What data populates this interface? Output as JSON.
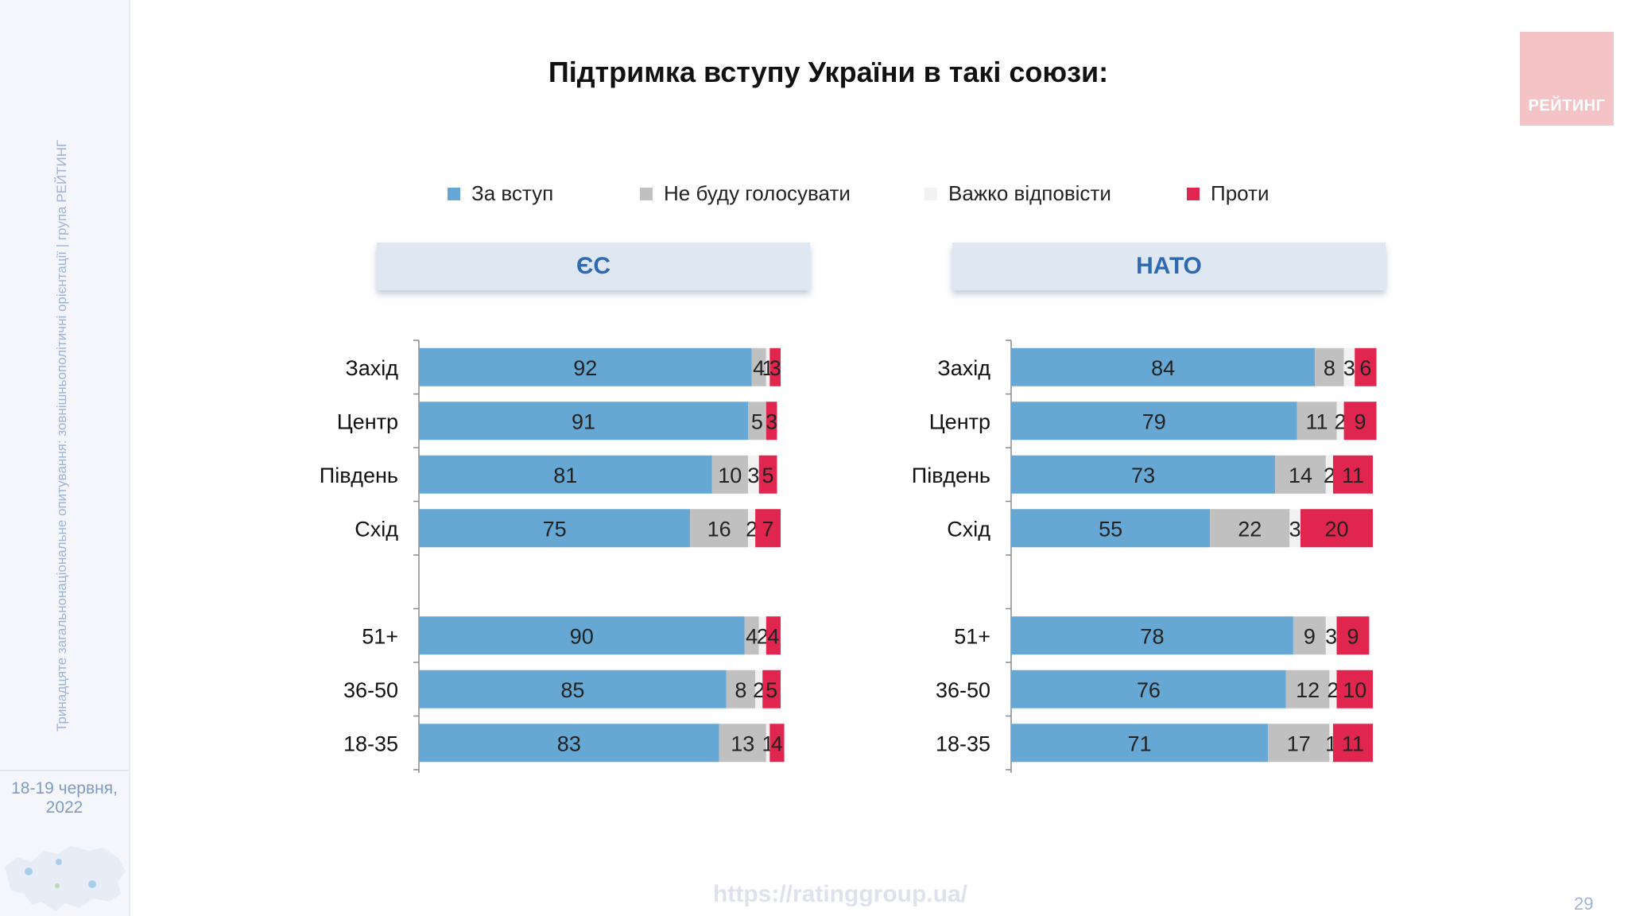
{
  "sidebar": {
    "vertical_text": "Тринадцяте загальнонаціональне опитування: зовнішньополітичні орієнтації | група РЕЙТИНГ",
    "date_line1": "18-19 червня,",
    "date_line2": "2022"
  },
  "title": "Підтримка вступу України в такі союзи:",
  "logo_text": "РЕЙТИНГ",
  "legend": [
    {
      "label": "За вступ",
      "color": "#66a8d3"
    },
    {
      "label": "Не буду голосувати",
      "color": "#c0c0c0"
    },
    {
      "label": "Важко відповісти",
      "color": "#f2f2f2"
    },
    {
      "label": "Проти",
      "color": "#e0264e"
    }
  ],
  "footer": {
    "url": "https://ratinggroup.ua/",
    "page_number": "29"
  },
  "chart_data": [
    {
      "type": "bar",
      "orientation": "horizontal",
      "stacked": true,
      "title": "ЄС",
      "categories": [
        "Захід",
        "Центр",
        "Південь",
        "Схід",
        "",
        "51+",
        "36-50",
        "18-35"
      ],
      "series": [
        {
          "name": "За вступ",
          "color": "#66a8d3",
          "values": [
            92,
            91,
            81,
            75,
            null,
            90,
            85,
            83
          ]
        },
        {
          "name": "Не буду голосувати",
          "color": "#c0c0c0",
          "values": [
            4,
            5,
            10,
            16,
            null,
            4,
            8,
            13
          ]
        },
        {
          "name": "Важко відповісти",
          "color": "#f2f2f2",
          "values": [
            1,
            0,
            3,
            2,
            null,
            2,
            2,
            1
          ]
        },
        {
          "name": "Проти",
          "color": "#e0264e",
          "values": [
            3,
            3,
            5,
            7,
            null,
            4,
            5,
            4
          ]
        }
      ],
      "xlim": [
        0,
        100
      ]
    },
    {
      "type": "bar",
      "orientation": "horizontal",
      "stacked": true,
      "title": "НАТО",
      "categories": [
        "Захід",
        "Центр",
        "Південь",
        "Схід",
        "",
        "51+",
        "36-50",
        "18-35"
      ],
      "series": [
        {
          "name": "За вступ",
          "color": "#66a8d3",
          "values": [
            84,
            79,
            73,
            55,
            null,
            78,
            76,
            71
          ]
        },
        {
          "name": "Не буду голосувати",
          "color": "#c0c0c0",
          "values": [
            8,
            11,
            14,
            22,
            null,
            9,
            12,
            17
          ]
        },
        {
          "name": "Важко відповісти",
          "color": "#f2f2f2",
          "values": [
            3,
            2,
            2,
            3,
            null,
            3,
            2,
            1
          ]
        },
        {
          "name": "Проти",
          "color": "#e0264e",
          "values": [
            6,
            9,
            11,
            20,
            null,
            9,
            10,
            11
          ]
        }
      ],
      "xlim": [
        0,
        100
      ]
    }
  ]
}
